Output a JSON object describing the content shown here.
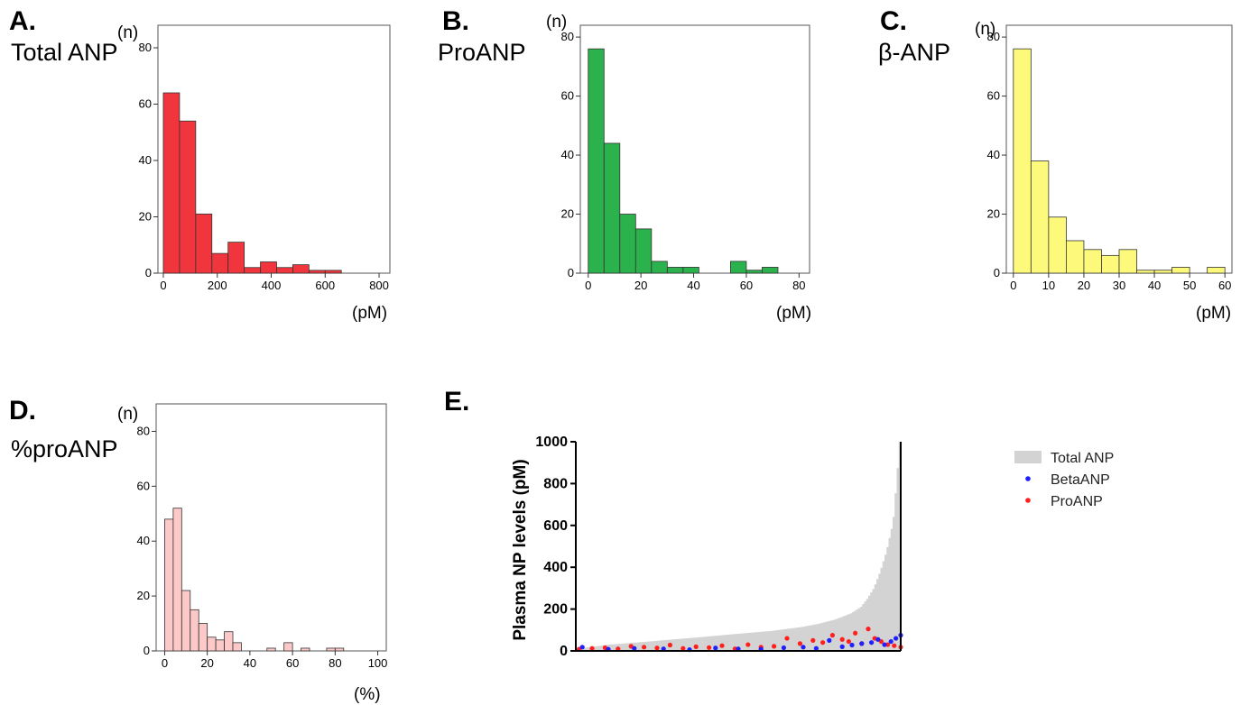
{
  "chart_data": [
    {
      "id": "A",
      "type": "bar",
      "panel_letter": "A.",
      "panel_name": "Total ANP",
      "y_unit": "(n)",
      "x_unit": "(pM)",
      "color": "#f0353c",
      "bin_edges": [
        0,
        60,
        120,
        180,
        240,
        300,
        360,
        420,
        480,
        540,
        600,
        660,
        720
      ],
      "values": [
        64,
        54,
        21,
        7,
        11,
        2,
        4,
        2,
        3,
        1,
        1,
        0
      ],
      "xlim": [
        -20,
        840
      ],
      "ylim": [
        0,
        88
      ],
      "xticks": [
        0,
        200,
        400,
        600,
        800
      ],
      "yticks": [
        0,
        20,
        40,
        60,
        80
      ]
    },
    {
      "id": "B",
      "type": "bar",
      "panel_letter": "B.",
      "panel_name": "ProANP",
      "y_unit": "(n)",
      "x_unit": "(pM)",
      "color": "#2bb24c",
      "bin_edges": [
        0,
        6,
        12,
        18,
        24,
        30,
        36,
        42,
        48,
        54,
        60,
        66,
        72
      ],
      "values": [
        76,
        44,
        20,
        15,
        4,
        2,
        2,
        0,
        0,
        4,
        1,
        2
      ],
      "xlim": [
        -3,
        84
      ],
      "ylim": [
        0,
        84
      ],
      "xticks": [
        0,
        20,
        40,
        60,
        80
      ],
      "yticks": [
        0,
        20,
        40,
        60,
        80
      ]
    },
    {
      "id": "C",
      "type": "bar",
      "panel_letter": "C.",
      "panel_name": "β-ANP",
      "y_unit": "(n)",
      "x_unit": "(pM)",
      "color": "#fdf97a",
      "bin_edges": [
        0,
        5,
        10,
        15,
        20,
        25,
        30,
        35,
        40,
        45,
        50,
        55,
        60
      ],
      "values": [
        76,
        38,
        19,
        11,
        8,
        6,
        8,
        1,
        1,
        2,
        0,
        2
      ],
      "xlim": [
        -2,
        62
      ],
      "ylim": [
        0,
        84
      ],
      "xticks": [
        0,
        10,
        20,
        30,
        40,
        50,
        60
      ],
      "yticks": [
        0,
        20,
        40,
        60,
        80
      ]
    },
    {
      "id": "D",
      "type": "bar",
      "panel_letter": "D.",
      "panel_name": "%proANP",
      "y_unit": "(n)",
      "x_unit": "(%)",
      "color": "#fcc8c8",
      "bin_edges": [
        0,
        4,
        8,
        12,
        16,
        20,
        24,
        28,
        32,
        36,
        40,
        44,
        48,
        52,
        56,
        60,
        64,
        68,
        72,
        76,
        80,
        84
      ],
      "values": [
        48,
        52,
        22,
        15,
        10,
        5,
        4,
        7,
        3,
        0,
        0,
        0,
        1,
        0,
        3,
        0,
        1,
        0,
        0,
        1,
        1
      ],
      "xlim": [
        -4,
        104
      ],
      "ylim": [
        0,
        90
      ],
      "xticks": [
        0,
        20,
        40,
        60,
        80,
        100
      ],
      "yticks": [
        0,
        20,
        40,
        60,
        80
      ]
    },
    {
      "id": "E",
      "type": "area",
      "panel_letter": "E.",
      "ylabel": "Plasma NP levels (pM)",
      "ylim": [
        0,
        1000
      ],
      "yticks": [
        0,
        200,
        400,
        600,
        800,
        1000
      ],
      "n_subjects": 160,
      "legend": {
        "position": "right",
        "entries": [
          {
            "name": "Total ANP",
            "color": "#d3d3d3",
            "marker": "box"
          },
          {
            "name": "BetaANP",
            "color": "#1f1fff",
            "marker": "dot"
          },
          {
            "name": "ProANP",
            "color": "#ff1f1f",
            "marker": "dot"
          }
        ]
      },
      "series": [
        {
          "name": "Total ANP",
          "color": "#d3d3d3",
          "rank_fraction": [
            0,
            0.1,
            0.2,
            0.3,
            0.4,
            0.5,
            0.6,
            0.7,
            0.75,
            0.8,
            0.85,
            0.88,
            0.9,
            0.92,
            0.94,
            0.96,
            0.98,
            0.99,
            1.0
          ],
          "values": [
            10,
            30,
            42,
            55,
            68,
            82,
            95,
            115,
            130,
            150,
            180,
            210,
            250,
            300,
            380,
            480,
            620,
            800,
            1000
          ]
        },
        {
          "name": "BetaANP",
          "color": "#1f1fff",
          "rank_fraction": [
            0.02,
            0.1,
            0.18,
            0.27,
            0.35,
            0.43,
            0.5,
            0.57,
            0.64,
            0.7,
            0.74,
            0.78,
            0.82,
            0.85,
            0.88,
            0.91,
            0.93,
            0.95,
            0.97,
            0.985,
            1.0
          ],
          "values": [
            18,
            8,
            12,
            10,
            6,
            14,
            10,
            8,
            15,
            18,
            12,
            50,
            20,
            28,
            35,
            40,
            55,
            30,
            45,
            60,
            75
          ]
        },
        {
          "name": "ProANP",
          "color": "#ff1f1f",
          "rank_fraction": [
            0.01,
            0.05,
            0.09,
            0.13,
            0.17,
            0.21,
            0.25,
            0.29,
            0.33,
            0.37,
            0.41,
            0.45,
            0.49,
            0.53,
            0.57,
            0.61,
            0.65,
            0.69,
            0.73,
            0.76,
            0.79,
            0.82,
            0.84,
            0.86,
            0.88,
            0.9,
            0.92,
            0.94,
            0.96,
            0.98,
            1.0
          ],
          "values": [
            8,
            12,
            15,
            10,
            22,
            18,
            14,
            28,
            12,
            20,
            16,
            25,
            10,
            30,
            18,
            22,
            60,
            35,
            50,
            40,
            75,
            55,
            45,
            85,
            35,
            105,
            60,
            45,
            30,
            25,
            18
          ]
        }
      ]
    }
  ]
}
